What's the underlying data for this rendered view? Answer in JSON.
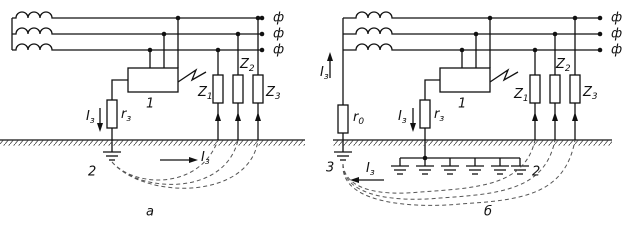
{
  "panel_a": {
    "phase_labels": [
      "ф",
      "ф",
      "ф"
    ],
    "load_labels": [
      {
        "main": "Z",
        "sub": "1"
      },
      {
        "main": "Z",
        "sub": "2"
      },
      {
        "main": "Z",
        "sub": "3"
      }
    ],
    "current_labels": [
      {
        "main": "I",
        "sub": "з"
      },
      {
        "main": "I",
        "sub": "з"
      }
    ],
    "resistor_label": {
      "main": "r",
      "sub": "з"
    },
    "equipment_label": "1",
    "ground_label": "2",
    "caption": "а"
  },
  "panel_b": {
    "phase_labels": [
      "ф",
      "ф",
      "ф"
    ],
    "load_labels": [
      {
        "main": "Z",
        "sub": "1"
      },
      {
        "main": "Z",
        "sub": "2"
      },
      {
        "main": "Z",
        "sub": "3"
      }
    ],
    "current_labels": [
      {
        "main": "I",
        "sub": "з"
      },
      {
        "main": "I",
        "sub": "з"
      },
      {
        "main": "I",
        "sub": "з"
      }
    ],
    "neutral_resistor_label": {
      "main": "r",
      "sub": "0"
    },
    "resistor_label": {
      "main": "r",
      "sub": "з"
    },
    "equipment_label": "1",
    "neutral_ground_label": "3",
    "grid_ground_label": "2",
    "caption": "б"
  }
}
